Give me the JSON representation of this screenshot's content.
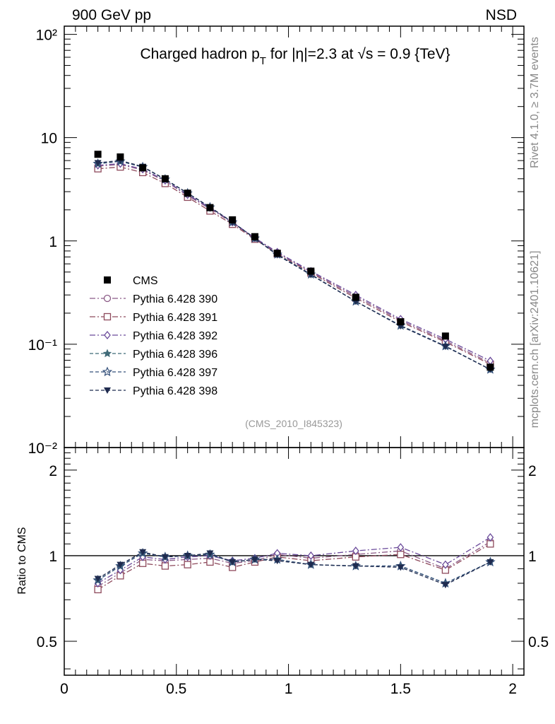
{
  "header": {
    "left": "900 GeV pp",
    "right": "NSD",
    "title_pre": "Charged hadron p",
    "title_sub": "T",
    "title_post": " for |η|=2.3 at √s = 0.9 {TeV}",
    "side_top": "Rivet 4.1.0, ≥ 3.7M events",
    "side_bottom": "mcplots.cern.ch [arXiv:2401.10621]",
    "analysis": "(CMS_2010_I845323)"
  },
  "colors": {
    "data": "#000000",
    "p390": "#8b5a86",
    "p391": "#8e4a5c",
    "p392": "#6a4a9a",
    "p396": "#3f6a78",
    "p397": "#34507a",
    "p398": "#1f2b4f"
  },
  "chart_data": [
    {
      "type": "line",
      "panel": "main",
      "yscale": "log",
      "xlim": [
        0,
        2.05
      ],
      "ylim": [
        0.01,
        120
      ],
      "ytick_labels": [
        "10²",
        "10",
        "1",
        "10⁻¹",
        "10⁻²"
      ],
      "ytick_values": [
        100,
        10,
        1,
        0.1,
        0.01
      ],
      "x": [
        0.15,
        0.25,
        0.35,
        0.45,
        0.55,
        0.65,
        0.75,
        0.85,
        0.95,
        1.1,
        1.3,
        1.5,
        1.7,
        1.9
      ],
      "legend_position": "lower-left",
      "data": {
        "name": "CMS",
        "marker": "square-filled",
        "color_key": "data",
        "values": [
          6.9,
          6.5,
          5.1,
          4.0,
          2.9,
          2.1,
          1.6,
          1.1,
          0.76,
          0.51,
          0.285,
          0.165,
          0.12,
          0.06
        ]
      },
      "series": [
        {
          "name": "Pythia 6.428 390",
          "marker": "circle-open",
          "dash": "8,3,2,3",
          "color_key": "p390",
          "values": [
            5.3,
            5.5,
            4.85,
            3.8,
            2.75,
            2.05,
            1.5,
            1.06,
            0.77,
            0.5,
            0.29,
            0.17,
            0.108,
            0.066
          ]
        },
        {
          "name": "Pythia 6.428 391",
          "marker": "square-open",
          "dash": "8,3,2,3",
          "color_key": "p391",
          "values": [
            5.0,
            5.2,
            4.6,
            3.6,
            2.65,
            1.95,
            1.45,
            1.04,
            0.75,
            0.49,
            0.28,
            0.165,
            0.105,
            0.064
          ]
        },
        {
          "name": "Pythia 6.428 392",
          "marker": "diamond-open",
          "dash": "8,3,2,3",
          "color_key": "p392",
          "values": [
            5.4,
            5.6,
            4.95,
            3.85,
            2.8,
            2.1,
            1.52,
            1.07,
            0.78,
            0.51,
            0.3,
            0.175,
            0.112,
            0.069
          ]
        },
        {
          "name": "Pythia 6.428 396",
          "marker": "star-filled",
          "dash": "5,3",
          "color_key": "p396",
          "values": [
            5.6,
            5.9,
            5.2,
            3.95,
            2.9,
            2.12,
            1.52,
            1.06,
            0.74,
            0.475,
            0.26,
            0.152,
            0.096,
            0.057
          ]
        },
        {
          "name": "Pythia 6.428 397",
          "marker": "star-open",
          "dash": "5,3",
          "color_key": "p397",
          "values": [
            5.6,
            5.9,
            5.2,
            3.95,
            2.9,
            2.12,
            1.52,
            1.06,
            0.74,
            0.475,
            0.26,
            0.152,
            0.096,
            0.057
          ]
        },
        {
          "name": "Pythia 6.428 398",
          "marker": "triangle-down-filled",
          "dash": "5,3",
          "color_key": "p398",
          "values": [
            5.7,
            6.0,
            5.25,
            3.95,
            2.9,
            2.13,
            1.52,
            1.06,
            0.73,
            0.47,
            0.26,
            0.15,
            0.095,
            0.057
          ]
        }
      ]
    },
    {
      "type": "line",
      "panel": "ratio",
      "ylabel": "Ratio to CMS",
      "yscale": "log",
      "xlim": [
        0,
        2.05
      ],
      "ylim": [
        0.38,
        2.4
      ],
      "ytick_labels": [
        "2",
        "1",
        "0.5"
      ],
      "ytick_values": [
        2,
        1,
        0.5
      ],
      "xtick_labels": [
        "0",
        "0.5",
        "1",
        "1.5",
        "2"
      ],
      "xtick_values": [
        0,
        0.5,
        1,
        1.5,
        2
      ],
      "x": [
        0.15,
        0.25,
        0.35,
        0.45,
        0.55,
        0.65,
        0.75,
        0.85,
        0.95,
        1.1,
        1.3,
        1.5,
        1.7,
        1.9
      ],
      "series": [
        {
          "name": "Pythia 6.428 390",
          "values": [
            0.78,
            0.87,
            0.97,
            0.96,
            0.97,
            0.98,
            0.94,
            0.96,
            1.01,
            0.98,
            1.01,
            1.04,
            0.9,
            1.12
          ]
        },
        {
          "name": "Pythia 6.428 391",
          "values": [
            0.76,
            0.85,
            0.94,
            0.92,
            0.93,
            0.95,
            0.91,
            0.95,
            0.99,
            0.96,
            0.99,
            1.01,
            0.89,
            1.1
          ]
        },
        {
          "name": "Pythia 6.428 392",
          "values": [
            0.8,
            0.89,
            0.99,
            0.97,
            0.99,
            1.0,
            0.96,
            0.98,
            1.02,
            1.0,
            1.04,
            1.07,
            0.93,
            1.16
          ]
        },
        {
          "name": "Pythia 6.428 396",
          "values": [
            0.82,
            0.92,
            1.02,
            0.99,
            1.0,
            1.01,
            0.95,
            0.97,
            0.97,
            0.93,
            0.92,
            0.92,
            0.8,
            0.95
          ]
        },
        {
          "name": "Pythia 6.428 397",
          "values": [
            0.82,
            0.92,
            1.02,
            0.99,
            1.0,
            1.01,
            0.95,
            0.97,
            0.97,
            0.93,
            0.92,
            0.92,
            0.8,
            0.95
          ]
        },
        {
          "name": "Pythia 6.428 398",
          "values": [
            0.83,
            0.93,
            1.03,
            0.99,
            1.0,
            1.02,
            0.95,
            0.97,
            0.96,
            0.93,
            0.92,
            0.91,
            0.79,
            0.95
          ]
        }
      ]
    }
  ]
}
